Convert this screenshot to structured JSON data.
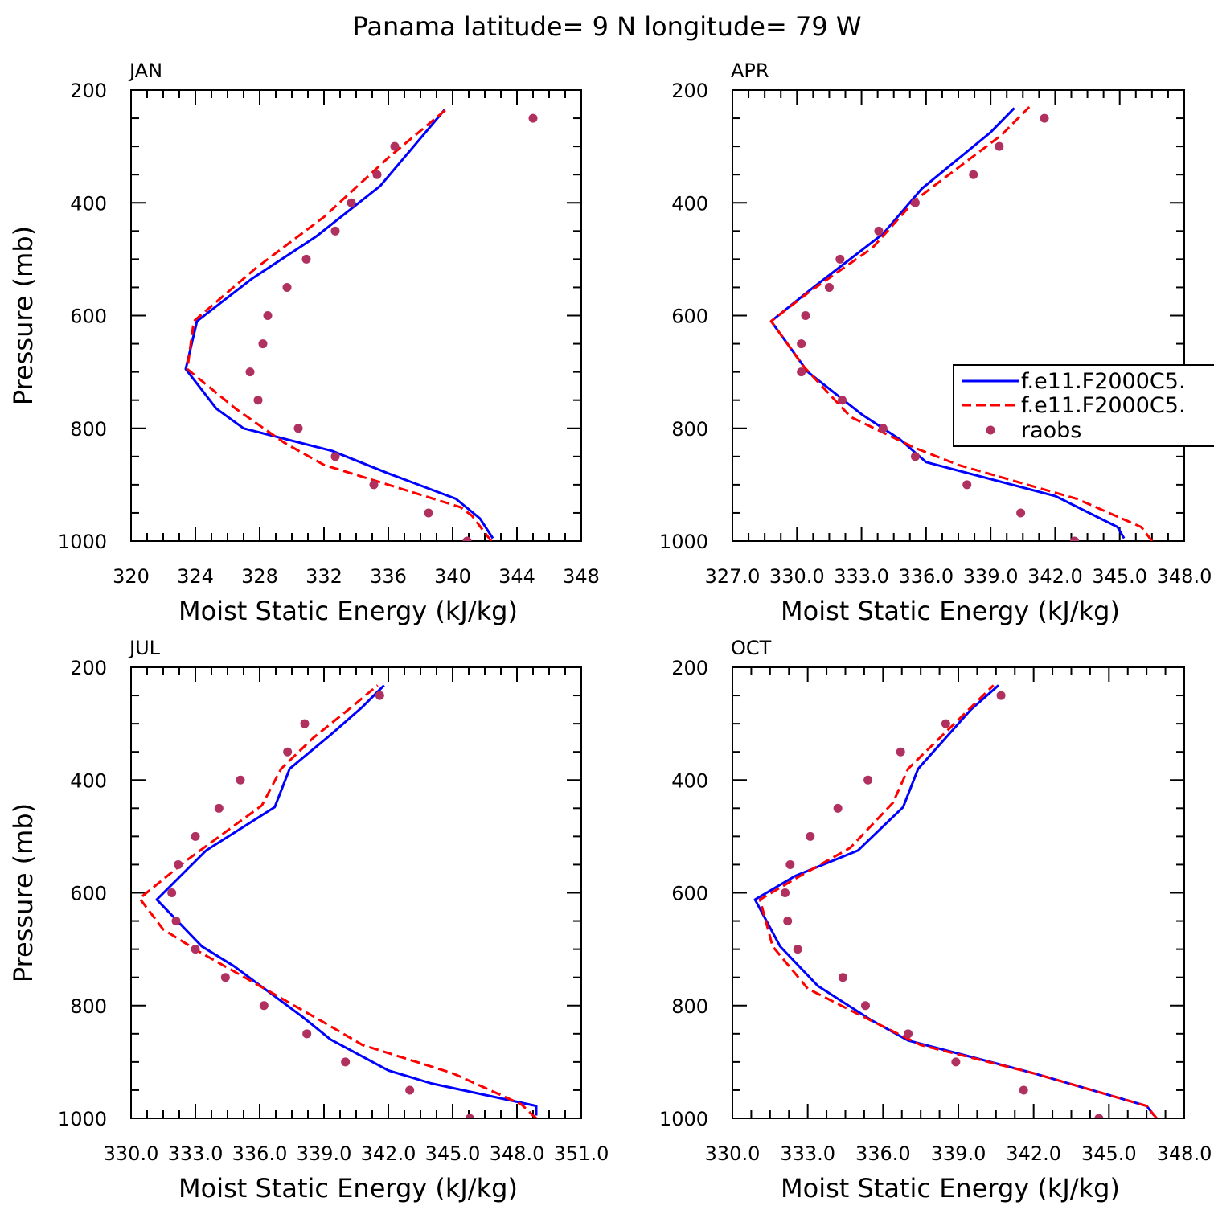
{
  "title": "Panama  latitude= 9 N longitude= 79 W",
  "chart_data": [
    {
      "type": "line",
      "panel": "JAN",
      "xlabel": "Moist Static Energy (kJ/kg)",
      "ylabel": "Pressure (mb)",
      "xlim": [
        320,
        348
      ],
      "ylim": [
        1000,
        200
      ],
      "xticks": [
        "320",
        "324",
        "328",
        "332",
        "336",
        "340",
        "344",
        "348"
      ],
      "yticks": [
        "200",
        "400",
        "600",
        "800",
        "1000"
      ],
      "series": [
        {
          "style": "solid",
          "color": "#0000ff",
          "x": [
            342.5,
            341.7,
            340.2,
            336.0,
            332.5,
            327.0,
            325.3,
            323.4,
            324.1,
            327.5,
            331.5,
            335.5,
            339.5
          ],
          "y": [
            995,
            960,
            925,
            880,
            840,
            800,
            765,
            695,
            610,
            535,
            460,
            370,
            235
          ]
        },
        {
          "style": "dashed",
          "color": "#ff0000",
          "x": [
            342.4,
            341.2,
            340.5,
            336.0,
            332.0,
            329.5,
            326.5,
            323.5,
            323.9,
            327.8,
            332.0,
            336.0,
            339.7
          ],
          "y": [
            1000,
            955,
            940,
            900,
            865,
            825,
            765,
            695,
            610,
            515,
            425,
            320,
            232
          ]
        },
        {
          "style": "points",
          "color": "#b03060",
          "name": "raobs",
          "x": [
            345.0,
            336.4,
            335.3,
            333.7,
            332.7,
            330.9,
            329.7,
            328.5,
            328.2,
            327.4,
            327.9,
            330.4,
            332.7,
            335.1,
            338.5,
            340.9
          ],
          "y": [
            250,
            300,
            350,
            400,
            450,
            500,
            550,
            600,
            650,
            700,
            750,
            800,
            850,
            900,
            950,
            1000
          ]
        }
      ]
    },
    {
      "type": "line",
      "panel": "APR",
      "xlabel": "Moist Static Energy (kJ/kg)",
      "ylabel": "",
      "xlim": [
        327,
        348
      ],
      "ylim": [
        1000,
        200
      ],
      "xticks": [
        "327.0",
        "330.0",
        "333.0",
        "336.0",
        "339.0",
        "342.0",
        "345.0",
        "348.0"
      ],
      "yticks": [
        "200",
        "400",
        "600",
        "800",
        "1000"
      ],
      "series": [
        {
          "style": "solid",
          "color": "#0000ff",
          "x": [
            345.2,
            344.9,
            342.0,
            336.0,
            334.8,
            333.0,
            330.5,
            328.8,
            330.6,
            334.0,
            335.8,
            339.0,
            340.1
          ],
          "y": [
            995,
            975,
            920,
            860,
            820,
            775,
            700,
            610,
            555,
            455,
            375,
            275,
            232
          ]
        },
        {
          "style": "dashed",
          "color": "#ff0000",
          "x": [
            346.5,
            346.0,
            343.0,
            337.5,
            335.5,
            332.5,
            330.3,
            328.8,
            330.5,
            333.5,
            335.5,
            339.5,
            340.8
          ],
          "y": [
            1000,
            975,
            925,
            865,
            835,
            780,
            690,
            610,
            560,
            480,
            395,
            280,
            230
          ]
        },
        {
          "style": "points",
          "color": "#b03060",
          "name": "raobs",
          "x": [
            341.5,
            339.4,
            338.2,
            335.5,
            333.8,
            332.0,
            331.5,
            330.4,
            330.2,
            330.2,
            332.1,
            334.0,
            335.5,
            337.9,
            340.4,
            342.9
          ],
          "y": [
            250,
            300,
            350,
            400,
            450,
            500,
            550,
            600,
            650,
            700,
            750,
            800,
            850,
            900,
            950,
            1000
          ]
        }
      ],
      "legend": {
        "position": "right",
        "entries": [
          "f.e11.F2000C5.",
          "f.e11.F2000C5.",
          "raobs"
        ]
      }
    },
    {
      "type": "line",
      "panel": "JUL",
      "xlabel": "Moist Static Energy (kJ/kg)",
      "ylabel": "Pressure (mb)",
      "xlim": [
        330,
        351
      ],
      "ylim": [
        1000,
        200
      ],
      "xticks": [
        "330.0",
        "333.0",
        "336.0",
        "339.0",
        "342.0",
        "345.0",
        "348.0",
        "351.0"
      ],
      "yticks": [
        "200",
        "400",
        "600",
        "800",
        "1000"
      ],
      "series": [
        {
          "style": "solid",
          "color": "#0000ff",
          "x": [
            348.9,
            348.9,
            344.0,
            342.0,
            339.3,
            338.0,
            334.8,
            333.3,
            331.2,
            333.5,
            336.7,
            337.4,
            339.3,
            340.8,
            341.8
          ],
          "y": [
            995,
            978,
            938,
            915,
            860,
            820,
            730,
            695,
            612,
            525,
            448,
            380,
            320,
            270,
            232
          ]
        },
        {
          "style": "dashed",
          "color": "#ff0000",
          "x": [
            348.9,
            348.2,
            345.0,
            340.8,
            339.0,
            335.3,
            333.2,
            331.5,
            330.4,
            332.5,
            336.1,
            337.0,
            338.5,
            340.3,
            341.5
          ],
          "y": [
            1000,
            975,
            920,
            870,
            830,
            750,
            705,
            665,
            610,
            545,
            445,
            380,
            325,
            270,
            232
          ]
        },
        {
          "style": "points",
          "color": "#b03060",
          "name": "raobs",
          "x": [
            341.6,
            338.1,
            337.3,
            335.1,
            334.1,
            333.0,
            332.2,
            331.9,
            332.1,
            333.0,
            334.4,
            336.2,
            338.2,
            340.0,
            343.0,
            345.8
          ],
          "y": [
            250,
            300,
            350,
            400,
            450,
            500,
            550,
            600,
            650,
            700,
            750,
            800,
            850,
            900,
            950,
            1000
          ]
        }
      ]
    },
    {
      "type": "line",
      "panel": "OCT",
      "xlabel": "Moist Static Energy (kJ/kg)",
      "ylabel": "",
      "xlim": [
        330,
        348
      ],
      "ylim": [
        1000,
        200
      ],
      "xticks": [
        "330.0",
        "333.0",
        "336.0",
        "339.0",
        "342.0",
        "345.0",
        "348.0"
      ],
      "yticks": [
        "200",
        "400",
        "600",
        "800",
        "1000"
      ],
      "series": [
        {
          "style": "solid",
          "color": "#0000ff",
          "x": [
            346.8,
            346.5,
            342.0,
            337.0,
            335.5,
            333.4,
            331.9,
            330.9,
            332.5,
            335.0,
            336.8,
            337.4,
            339.5,
            340.6
          ],
          "y": [
            995,
            978,
            920,
            862,
            825,
            765,
            695,
            612,
            570,
            525,
            448,
            380,
            275,
            232
          ]
        },
        {
          "style": "dashed",
          "color": "#ff0000",
          "x": [
            346.9,
            346.5,
            342.0,
            337.5,
            335.0,
            333.0,
            331.6,
            331.1,
            332.5,
            334.7,
            336.4,
            337.0,
            339.3,
            340.4
          ],
          "y": [
            1000,
            978,
            920,
            870,
            815,
            770,
            695,
            612,
            575,
            520,
            440,
            380,
            280,
            232
          ]
        },
        {
          "style": "points",
          "color": "#b03060",
          "name": "raobs",
          "x": [
            340.7,
            338.5,
            336.7,
            335.4,
            334.2,
            333.1,
            332.3,
            332.1,
            332.2,
            332.6,
            334.4,
            335.3,
            337.0,
            338.9,
            341.6,
            344.6
          ],
          "y": [
            250,
            300,
            350,
            400,
            450,
            500,
            550,
            600,
            650,
            700,
            750,
            800,
            850,
            900,
            950,
            1000
          ]
        }
      ]
    }
  ]
}
